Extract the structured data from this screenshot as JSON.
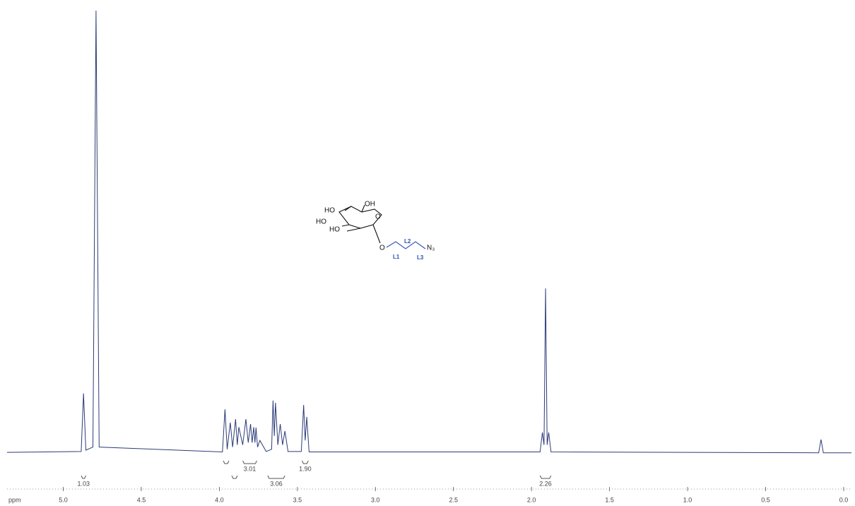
{
  "chart_data": {
    "type": "line",
    "x_label": "ppm",
    "x": [
      5.36,
      4.885,
      4.87,
      4.855,
      4.81,
      4.79,
      4.77,
      3.98,
      3.964,
      3.95,
      3.93,
      3.915,
      3.896,
      3.885,
      3.875,
      3.85,
      3.83,
      3.815,
      3.8,
      3.79,
      3.78,
      3.772,
      3.765,
      3.755,
      3.74,
      3.7,
      3.665,
      3.656,
      3.648,
      3.64,
      3.625,
      3.61,
      3.595,
      3.58,
      3.56,
      3.475,
      3.46,
      3.45,
      3.44,
      3.425,
      1.945,
      1.93,
      1.92,
      1.91,
      1.9,
      1.89,
      1.875,
      0.16,
      0.145,
      0.13,
      -0.05
    ],
    "values": [
      0.3,
      0.5,
      13.6,
      0.8,
      1.5,
      100,
      1.5,
      0.4,
      10,
      1,
      7,
      1.5,
      7.8,
      2,
      6,
      2,
      7.8,
      2.5,
      6.7,
      2.5,
      6,
      2.5,
      5.9,
      1.5,
      3,
      0.5,
      1,
      12,
      4,
      11.5,
      2,
      6.7,
      2,
      5.1,
      0.5,
      0.5,
      11,
      3,
      8.3,
      0.4,
      0.4,
      4.8,
      2,
      37.3,
      2,
      4.8,
      0.4,
      0.2,
      3.2,
      0.2,
      0.2
    ],
    "color": "#2c3b78",
    "xlim": [
      5.36,
      -0.05
    ],
    "ylim": [
      0,
      100
    ],
    "xticks": [
      {
        "value": 5,
        "label": "5.0"
      },
      4.5,
      {
        "value": 4,
        "label": "4.0"
      },
      3.5,
      {
        "value": 3,
        "label": "3.0"
      },
      2.5,
      {
        "value": 2,
        "label": "2.0"
      },
      1.5,
      {
        "value": 1,
        "label": "1.0"
      },
      0.5,
      {
        "value": 0,
        "label": "0.0"
      }
    ],
    "integrals": {
      "values": [
        1.03,
        3.01,
        3.06,
        1.9,
        2.26
      ],
      "value_labels": [
        "1.03",
        "3.01",
        "3.06",
        "1.90",
        "2.26"
      ],
      "ranges": [
        [
          4.885,
          4.855
        ],
        [
          3.85,
          3.76
        ],
        [
          3.69,
          3.58
        ],
        [
          3.47,
          3.43
        ],
        [
          1.945,
          1.875
        ]
      ]
    },
    "annotations": [
      "HO",
      "OH",
      "HO",
      "HO",
      "O",
      "O",
      "N₃",
      "L1",
      "L2",
      "L3"
    ]
  }
}
